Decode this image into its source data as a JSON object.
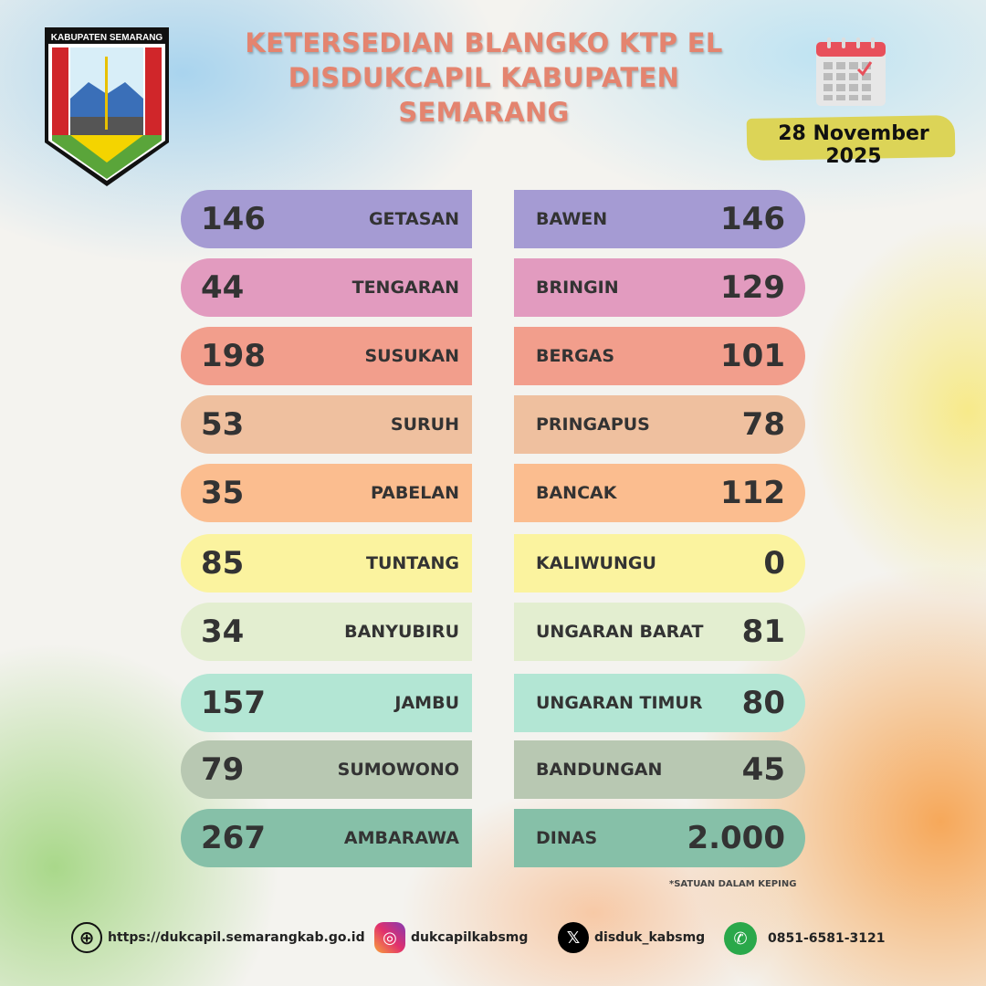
{
  "logo": {
    "text": "KABUPATEN SEMARANG"
  },
  "title": {
    "line1": "KETERSEDIAN BLANGKO KTP EL",
    "line2": "DISDUKCAPIL KABUPATEN",
    "line3": "SEMARANG"
  },
  "date": "28 November 2025",
  "left": [
    {
      "value": "146",
      "name": "GETASAN",
      "color": "#a59bd3"
    },
    {
      "value": "44",
      "name": "TENGARAN",
      "color": "#e29bbf"
    },
    {
      "value": "198",
      "name": "SUSUKAN",
      "color": "#f29e8c"
    },
    {
      "value": "53",
      "name": "SURUH",
      "color": "#efc09f"
    },
    {
      "value": "35",
      "name": "PABELAN",
      "color": "#fbbd8f"
    },
    {
      "value": "85",
      "name": "TUNTANG",
      "color": "#fbf39f"
    },
    {
      "value": "34",
      "name": "BANYUBIRU",
      "color": "#e3eed0"
    },
    {
      "value": "157",
      "name": "JAMBU",
      "color": "#b3e6d4"
    },
    {
      "value": "79",
      "name": "SUMOWONO",
      "color": "#b8c8b2"
    },
    {
      "value": "267",
      "name": "AMBARAWA",
      "color": "#86c0a8"
    }
  ],
  "right": [
    {
      "value": "146",
      "name": "BAWEN",
      "color": "#a59bd3"
    },
    {
      "value": "129",
      "name": "BRINGIN",
      "color": "#e29bbf"
    },
    {
      "value": "101",
      "name": "BERGAS",
      "color": "#f29e8c"
    },
    {
      "value": "78",
      "name": "PRINGAPUS",
      "color": "#efc09f"
    },
    {
      "value": "112",
      "name": "BANCAK",
      "color": "#fbbd8f"
    },
    {
      "value": "0",
      "name": "KALIWUNGU",
      "color": "#fbf39f"
    },
    {
      "value": "81",
      "name": "UNGARAN BARAT",
      "color": "#e3eed0"
    },
    {
      "value": "80",
      "name": "UNGARAN TIMUR",
      "color": "#b3e6d4"
    },
    {
      "value": "45",
      "name": "BANDUNGAN",
      "color": "#b8c8b2"
    },
    {
      "value": "2.000",
      "name": "DINAS",
      "color": "#86c0a8"
    }
  ],
  "note": "*SATUAN DALAM KEPING",
  "footer": {
    "website": "https://dukcapil.semarangkab.go.id",
    "instagram": "dukcapilkabsmg",
    "x": "disduk_kabsmg",
    "whatsapp": "0851-6581-3121"
  }
}
